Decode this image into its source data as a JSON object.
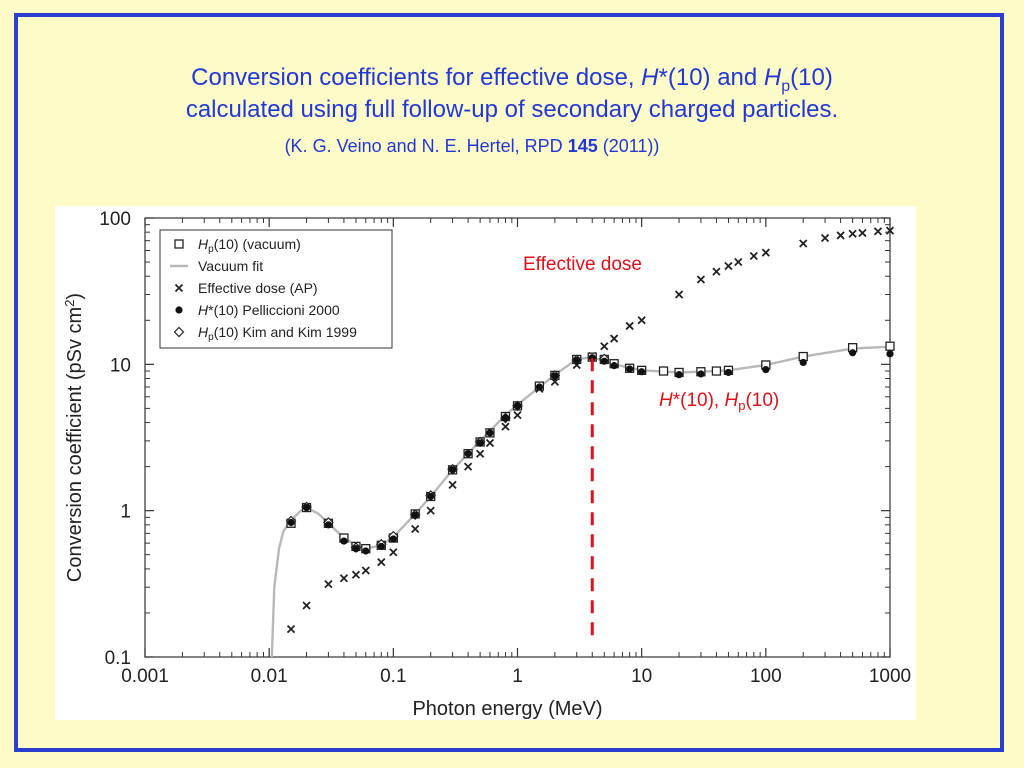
{
  "slide": {
    "title_line1_a": "Conversion coefficients for effective dose, ",
    "title_line1_h": "H",
    "title_line1_b": "*(10) and ",
    "title_line1_h2": "H",
    "title_line1_sub": "p",
    "title_line1_c": "(10)",
    "title_line2": "calculated  using full follow-up of secondary charged particles.",
    "ref_a": "(K. G. Veino and N. E. Hertel, RPD ",
    "ref_bold": "145",
    "ref_b": " (2011))",
    "colors": {
      "background": "#fdfcc8",
      "border": "#2a3fd0",
      "title": "#2337d8",
      "annotation": "#e0101a"
    }
  },
  "annotations": {
    "effective_dose": "Effective dose",
    "hstar_a": "H",
    "hstar_b": "*(10), ",
    "hp_a": "H",
    "hp_sub": "p",
    "hp_b": "(10)"
  },
  "chart_data": {
    "type": "scatter",
    "xscale": "log",
    "yscale": "log",
    "xlim": [
      0.001,
      1000
    ],
    "ylim": [
      0.1,
      100
    ],
    "xlabel": "Photon energy (MeV)",
    "ylabel_a": "Conversion coefficient (pSv cm",
    "ylabel_sup": "2",
    "ylabel_b": ")",
    "xticks": [
      "0.001",
      "0.01",
      "0.1",
      "1",
      "10",
      "100",
      "1000"
    ],
    "yticks": [
      "0.1",
      "1",
      "10",
      "100"
    ],
    "legend_position": "top-left",
    "legend": [
      {
        "marker": "square",
        "a": "H",
        "sub": "p",
        "b": "(10) (vacuum)"
      },
      {
        "marker": "line",
        "a": "",
        "sub": "",
        "b": "Vacuum fit"
      },
      {
        "marker": "x",
        "a": "",
        "sub": "",
        "b": "Effective dose (AP)"
      },
      {
        "marker": "dot",
        "a": "H",
        "sub": "",
        "b": "*(10) Pelliccioni 2000"
      },
      {
        "marker": "diamond",
        "a": "H",
        "sub": "p",
        "b": "(10) Kim and Kim 1999"
      }
    ],
    "series": [
      {
        "name": "Hp(10) (vacuum)",
        "marker": "square",
        "x": [
          0.015,
          0.02,
          0.03,
          0.04,
          0.05,
          0.06,
          0.08,
          0.1,
          0.15,
          0.2,
          0.3,
          0.4,
          0.5,
          0.6,
          0.8,
          1,
          1.5,
          2,
          3,
          4,
          5,
          6,
          8,
          10,
          15,
          20,
          30,
          40,
          50,
          100,
          200,
          500,
          1000
        ],
        "y": [
          0.82,
          1.05,
          0.82,
          0.65,
          0.57,
          0.55,
          0.58,
          0.65,
          0.95,
          1.25,
          1.9,
          2.45,
          2.95,
          3.4,
          4.4,
          5.2,
          7.1,
          8.4,
          10.8,
          11.2,
          10.8,
          10.1,
          9.4,
          9.1,
          9.0,
          8.8,
          8.9,
          9.0,
          9.1,
          9.9,
          11.3,
          13.0,
          13.3
        ]
      },
      {
        "name": "Vacuum fit",
        "marker": "line",
        "x": [
          0.0105,
          0.011,
          0.012,
          0.013,
          0.015,
          0.018,
          0.02,
          0.025,
          0.03,
          0.04,
          0.05,
          0.06,
          0.08,
          0.1,
          0.15,
          0.2,
          0.3,
          0.5,
          0.8,
          1,
          2,
          3,
          4,
          6,
          10,
          20,
          30,
          50,
          100,
          200,
          500,
          1000
        ],
        "y": [
          0.1,
          0.3,
          0.55,
          0.72,
          0.86,
          1.0,
          1.05,
          0.95,
          0.82,
          0.65,
          0.58,
          0.55,
          0.58,
          0.66,
          0.95,
          1.25,
          1.9,
          3.0,
          4.5,
          5.3,
          8.5,
          10.8,
          11.2,
          10.0,
          9.1,
          8.8,
          8.9,
          9.1,
          9.9,
          11.3,
          12.8,
          13.2
        ]
      },
      {
        "name": "Effective dose (AP)",
        "marker": "x",
        "x": [
          0.015,
          0.02,
          0.03,
          0.04,
          0.05,
          0.06,
          0.08,
          0.1,
          0.15,
          0.2,
          0.3,
          0.4,
          0.5,
          0.6,
          0.8,
          1,
          1.5,
          2,
          3,
          4,
          5,
          6,
          8,
          10,
          20,
          30,
          40,
          50,
          60,
          80,
          100,
          200,
          300,
          400,
          500,
          600,
          800,
          1000
        ],
        "y": [
          0.155,
          0.225,
          0.315,
          0.345,
          0.365,
          0.39,
          0.445,
          0.52,
          0.75,
          1.0,
          1.5,
          2.0,
          2.45,
          2.9,
          3.75,
          4.5,
          6.8,
          7.6,
          9.9,
          11.4,
          13.3,
          15.0,
          18.3,
          20.0,
          30.0,
          38.0,
          43.0,
          47.0,
          50.0,
          55.0,
          58.0,
          67.0,
          73.0,
          76.0,
          78.0,
          79.0,
          81.0,
          82.0
        ]
      },
      {
        "name": "H*(10) Pelliccioni 2000",
        "marker": "dot",
        "x": [
          0.015,
          0.02,
          0.03,
          0.04,
          0.05,
          0.06,
          0.08,
          0.1,
          0.15,
          0.2,
          0.3,
          0.4,
          0.5,
          0.6,
          0.8,
          1,
          1.5,
          2,
          3,
          4,
          5,
          6,
          8,
          10,
          20,
          30,
          50,
          100,
          200,
          500,
          1000
        ],
        "y": [
          0.83,
          1.05,
          0.8,
          0.62,
          0.55,
          0.53,
          0.57,
          0.64,
          0.93,
          1.25,
          1.9,
          2.45,
          2.9,
          3.4,
          4.3,
          5.2,
          7.0,
          8.3,
          10.6,
          11.1,
          10.5,
          9.8,
          9.3,
          8.9,
          8.5,
          8.6,
          8.8,
          9.2,
          10.3,
          12.0,
          11.8
        ]
      },
      {
        "name": "Hp(10) Kim and Kim 1999",
        "marker": "diamond",
        "x": [
          0.015,
          0.02,
          0.03,
          0.05,
          0.08,
          0.1,
          0.15,
          0.2,
          0.3,
          0.5,
          0.8,
          1,
          2,
          3,
          5
        ],
        "y": [
          0.85,
          1.06,
          0.83,
          0.56,
          0.59,
          0.67,
          0.94,
          1.27,
          1.92,
          2.95,
          4.3,
          5.2,
          8.4,
          10.7,
          10.9
        ]
      }
    ],
    "marker_line": {
      "x": 4,
      "y_from": 0.125,
      "y_to": 11,
      "color": "#e0101a"
    }
  }
}
